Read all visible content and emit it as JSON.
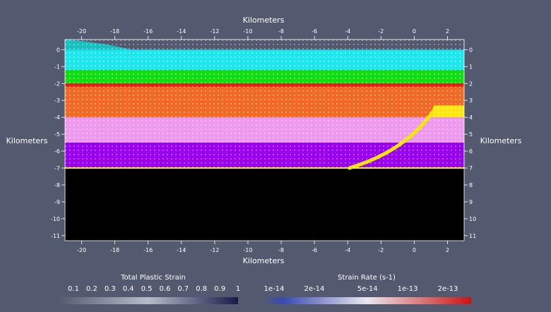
{
  "axes": {
    "top_title": "Kilometers",
    "bottom_title": "Kilometers",
    "left_title": "Kilometers",
    "right_title": "Kilometers",
    "x_ticks": [
      "-20",
      "-18",
      "-16",
      "-14",
      "-12",
      "-10",
      "-8",
      "-6",
      "-4",
      "-2",
      "0",
      "2"
    ],
    "y_ticks_left": [
      "0",
      "-1",
      "-2",
      "-3",
      "-4",
      "-5",
      "-6",
      "-7",
      "-8",
      "-9",
      "-10",
      "-11"
    ],
    "y_ticks_right": [
      "0",
      "1",
      "2",
      "3",
      "4",
      "5",
      "6",
      "7",
      "8",
      "9",
      "10",
      "11"
    ],
    "x_range": [
      -21,
      3
    ],
    "y_range": [
      -11.3,
      0.6
    ]
  },
  "layers": [
    {
      "name": "cyan-layer",
      "top": 0,
      "bottom": -1.2,
      "color": "#1ee6ee"
    },
    {
      "name": "green-layer",
      "top": -1.2,
      "bottom": -2.0,
      "color": "#12dd12"
    },
    {
      "name": "red-layer",
      "top": -2.0,
      "bottom": -2.2,
      "color": "#e52010"
    },
    {
      "name": "orange-layer",
      "top": -2.2,
      "bottom": -4.0,
      "color": "#f06a25"
    },
    {
      "name": "pink-layer",
      "top": -4.0,
      "bottom": -5.5,
      "color": "#ee99ee"
    },
    {
      "name": "purple-layer",
      "top": -5.5,
      "bottom": -7.0,
      "color": "#9900ee"
    },
    {
      "name": "black-basement",
      "top": -7.0,
      "bottom": -11.3,
      "color": "#000000"
    }
  ],
  "colorbars": {
    "plastic": {
      "title": "Total Plastic Strain",
      "ticks": [
        "0.1",
        "0.2",
        "0.3",
        "0.4",
        "0.5",
        "0.6",
        "0.7",
        "0.8",
        "0.9",
        "1"
      ],
      "color_start": "#535a70",
      "color_end": "#1a1a4a"
    },
    "rate": {
      "title": "Strain Rate (s-1)",
      "ticks": [
        "1e-14",
        "2e-14",
        "5e-14",
        "1e-13",
        "2e-13"
      ],
      "color_low": "#3a4ab0",
      "color_mid": "#e8e8f0",
      "color_high": "#cc1111"
    }
  }
}
